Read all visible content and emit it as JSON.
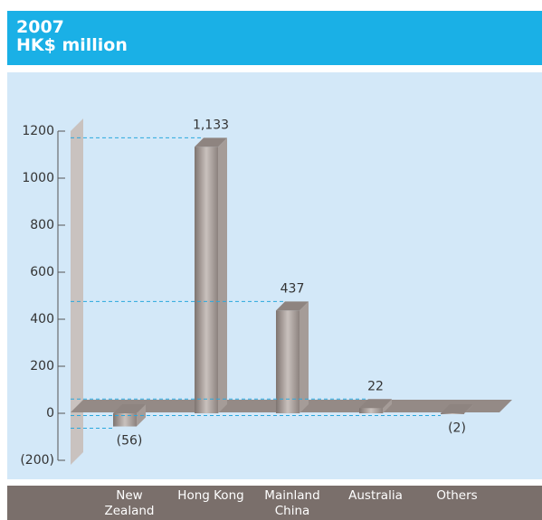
{
  "chart_data": {
    "type": "bar3d",
    "title": "2007",
    "subtitle": "HK$ million",
    "categories": [
      "New Zealand",
      "Hong Kong",
      "Mainland China",
      "Australia",
      "Others"
    ],
    "values": [
      -56,
      1133,
      437,
      22,
      -2
    ],
    "value_labels": [
      "(56)",
      "1,133",
      "437",
      "22",
      "(2)"
    ],
    "ylim": [
      -200,
      1200
    ],
    "yticks": [
      {
        "value": -200,
        "label": "(200)"
      },
      0,
      200,
      400,
      600,
      800,
      1000,
      1200
    ],
    "color": "#9a908c"
  }
}
